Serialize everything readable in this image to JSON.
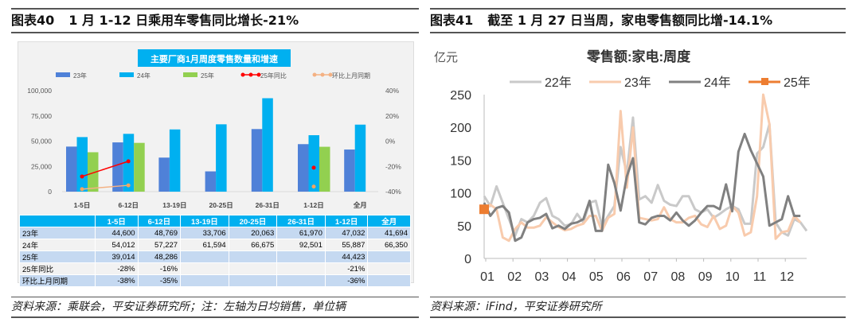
{
  "left": {
    "header_num": "图表40",
    "header_title": "1 月 1-12 日乘用车零售同比增长-21%",
    "footer": "资料来源：乘联会，平安证券研究所；注：左轴为日均销售，单位辆"
  },
  "right": {
    "header_num": "图表41",
    "header_title": "截至 1 月 27 日当周，家电零售额同比增-14.1%",
    "footer": "资料来源：iFind，平安证券研究所"
  },
  "chart_data": [
    {
      "type": "bar",
      "title": "主要厂商1月周度零售数量和增速",
      "categories": [
        "1-5日",
        "6-12日",
        "13-19日",
        "20-25日",
        "26-31日",
        "1-12日",
        "全月"
      ],
      "series": [
        {
          "name": "23年",
          "values": [
            44600,
            48769,
            33706,
            20063,
            61970,
            47032,
            41694
          ],
          "color": "#4f81d8"
        },
        {
          "name": "24年",
          "values": [
            54012,
            57227,
            61594,
            66675,
            92501,
            55887,
            66350
          ],
          "color": "#00b0f0"
        },
        {
          "name": "25年",
          "values": [
            39014,
            48286,
            null,
            null,
            null,
            44423,
            null
          ],
          "color": "#92d050"
        },
        {
          "name": "25年同比",
          "values": [
            -28,
            -16,
            null,
            null,
            null,
            -21,
            null
          ],
          "color": "#ff0000",
          "axis": "right",
          "type": "line"
        },
        {
          "name": "环比上月同期",
          "values": [
            -38,
            -35,
            null,
            null,
            null,
            -36,
            null
          ],
          "color": "#f4b183",
          "axis": "right",
          "type": "line"
        }
      ],
      "ylim": [
        0,
        100000
      ],
      "yticks": [
        "0",
        "25,000",
        "50,000",
        "75,000",
        "100,000"
      ],
      "y2lim": [
        -40,
        40
      ],
      "y2ticks": [
        "-40%",
        "-20%",
        "0%",
        "20%",
        "40%"
      ],
      "legend": "top",
      "table": {
        "header": [
          "",
          "1-5日",
          "6-12日",
          "13-19日",
          "20-25日",
          "26-31日",
          "1-12日",
          "全月"
        ],
        "rows": [
          [
            "23年",
            "44,600",
            "48,769",
            "33,706",
            "20,063",
            "61,970",
            "47,032",
            "41,694"
          ],
          [
            "24年",
            "54,012",
            "57,227",
            "61,594",
            "66,675",
            "92,501",
            "55,887",
            "66,350"
          ],
          [
            "25年",
            "39,014",
            "48,286",
            "",
            "",
            "",
            "44,423",
            ""
          ],
          [
            "25年同比",
            "-28%",
            "-16%",
            "",
            "",
            "",
            "-21%",
            ""
          ],
          [
            "环比上月同期",
            "-38%",
            "-35%",
            "",
            "",
            "",
            "-36%",
            ""
          ]
        ]
      }
    },
    {
      "type": "line",
      "title": "零售额:家电:周度",
      "ylabel": "亿元",
      "ylim": [
        0,
        250
      ],
      "yticks": [
        "0",
        "50",
        "100",
        "150",
        "200",
        "250"
      ],
      "xticks": [
        "01",
        "02",
        "03",
        "04",
        "05",
        "06",
        "07",
        "08",
        "09",
        "10",
        "11",
        "12"
      ],
      "legend": "top",
      "series": [
        {
          "name": "22年",
          "color": "#c9c9c9",
          "values": [
            95,
            80,
            110,
            85,
            60,
            35,
            60,
            55,
            65,
            85,
            92,
            65,
            60,
            50,
            52,
            68,
            55,
            85,
            88,
            50,
            65,
            80,
            170,
            130,
            215,
            90,
            95,
            85,
            112,
            88,
            82,
            80,
            95,
            95,
            75,
            70,
            75,
            62,
            68,
            75,
            80,
            75,
            53,
            53,
            160,
            170,
            205,
            55,
            40,
            35,
            60,
            55,
            42
          ]
        },
        {
          "name": "23年",
          "color": "#f8cbad",
          "values": [
            72,
            82,
            75,
            32,
            27,
            45,
            55,
            47,
            47,
            50,
            63,
            55,
            48,
            43,
            45,
            50,
            53,
            65,
            65,
            42,
            62,
            68,
            225,
            108,
            200,
            62,
            60,
            58,
            60,
            78,
            60,
            55,
            55,
            62,
            65,
            52,
            48,
            65,
            45,
            50,
            80,
            70,
            35,
            40,
            95,
            250,
            205,
            30,
            40,
            42,
            65,
            55
          ]
        },
        {
          "name": "24年",
          "color": "#808080",
          "values": [
            85,
            65,
            77,
            80,
            70,
            27,
            32,
            55,
            60,
            62,
            68,
            46,
            50,
            45,
            53,
            55,
            60,
            88,
            42,
            42,
            143,
            115,
            73,
            125,
            153,
            55,
            52,
            62,
            65,
            65,
            58,
            70,
            58,
            50,
            58,
            70,
            80,
            80,
            75,
            113,
            72,
            163,
            190,
            165,
            145,
            125,
            50,
            55,
            60,
            95,
            65,
            65
          ]
        },
        {
          "name": "25年",
          "color": "#ed7d31",
          "values": [
            75
          ],
          "marker": "square"
        }
      ]
    }
  ]
}
